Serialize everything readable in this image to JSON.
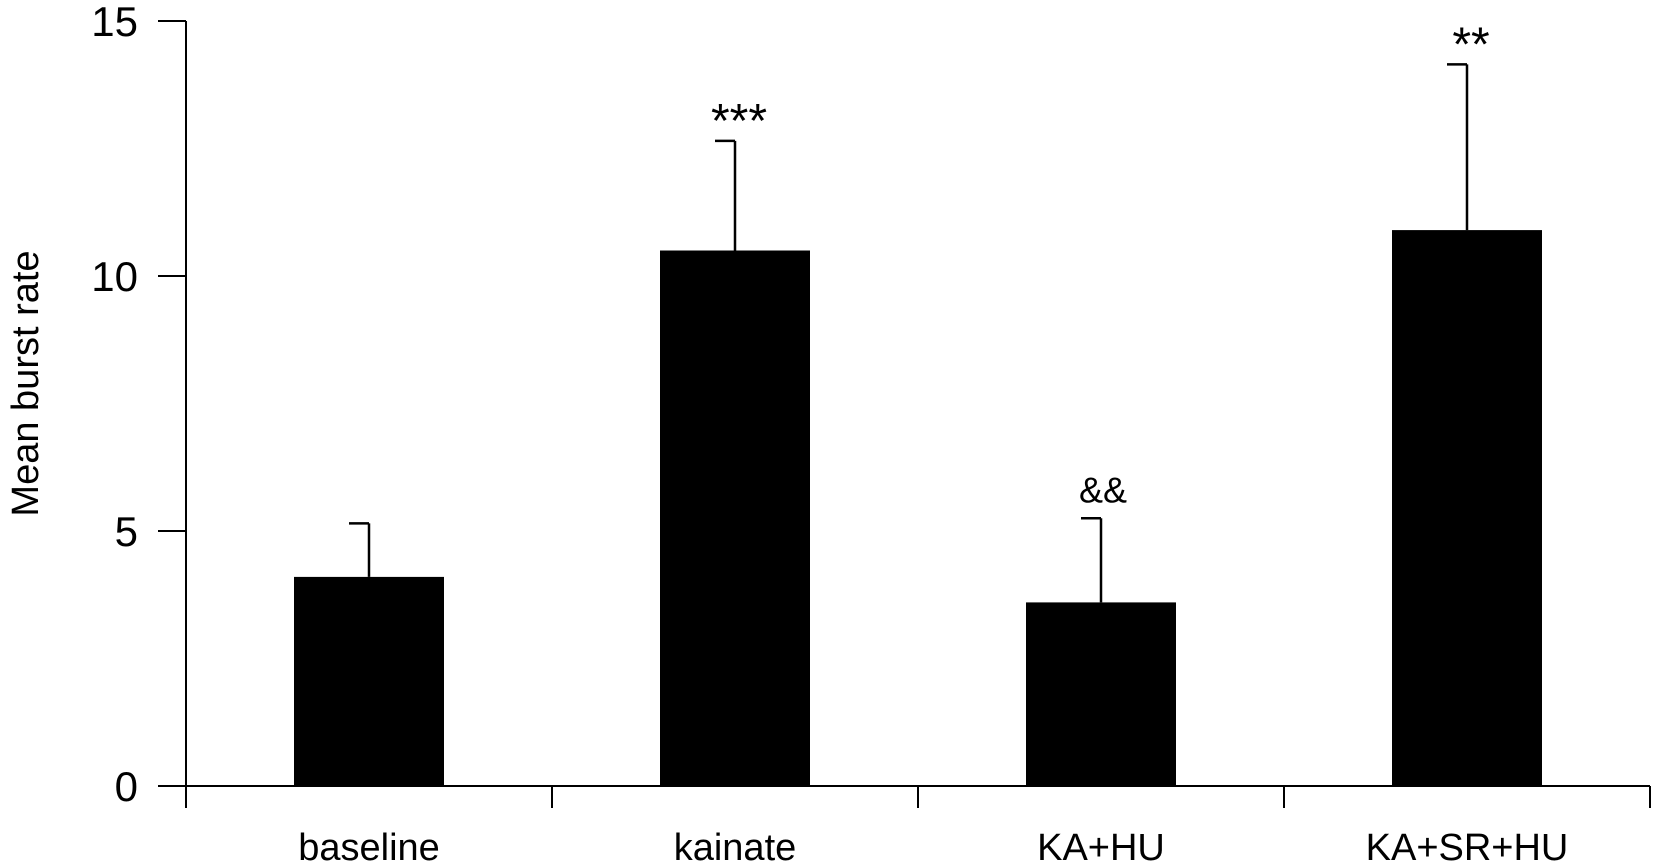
{
  "chart_data": {
    "type": "bar",
    "title": "",
    "xlabel": "",
    "ylabel": "Mean burst rate",
    "ylim": [
      0,
      15
    ],
    "yticks": [
      "0",
      "5",
      "10",
      "15"
    ],
    "yticks_values": [
      0,
      5,
      10,
      15
    ],
    "categories": [
      "baseline",
      "kainate",
      "KA+HU",
      "KA+SR+HU"
    ],
    "values": [
      4.1,
      10.5,
      3.6,
      10.9
    ],
    "error": [
      1.05,
      2.15,
      1.65,
      3.25
    ],
    "annotations": [
      "",
      "***",
      "&&",
      "**"
    ],
    "bar_color": "#000000",
    "grid": false,
    "legend": "none"
  }
}
